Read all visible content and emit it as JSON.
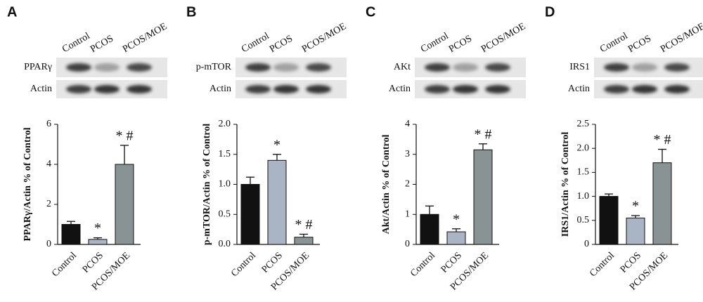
{
  "chart_data": [
    {
      "type": "bar",
      "panel": "A",
      "blot_lanes": [
        "Control",
        "PCOS",
        "PCOS/MOE"
      ],
      "blot_rows": [
        "PPARγ",
        "Actin"
      ],
      "ylabel": "PPARγ/Actin % of Control",
      "categories": [
        "Control",
        "PCOS",
        "PCOS/MOE"
      ],
      "values": [
        1.0,
        0.25,
        4.0
      ],
      "errors": [
        0.15,
        0.08,
        0.95
      ],
      "annotations": [
        null,
        "*",
        "* #"
      ],
      "colors": [
        "#111111",
        "#a9b4c4",
        "#899393"
      ],
      "ylim": [
        0,
        6
      ],
      "yticks": [
        0,
        2,
        4,
        6
      ]
    },
    {
      "type": "bar",
      "panel": "B",
      "blot_lanes": [
        "Control",
        "PCOS",
        "PCOS/MOE"
      ],
      "blot_rows": [
        "p-mTOR",
        "Actin"
      ],
      "ylabel": "p-mTOR/Actin % of Control",
      "categories": [
        "Control",
        "PCOS",
        "PCOS/MOE"
      ],
      "values": [
        1.0,
        1.4,
        0.12
      ],
      "errors": [
        0.12,
        0.1,
        0.05
      ],
      "annotations": [
        null,
        "*",
        "* #"
      ],
      "colors": [
        "#111111",
        "#a9b4c4",
        "#899393"
      ],
      "ylim": [
        0,
        2
      ],
      "yticks": [
        {
          "value": 0,
          "label": "0.0"
        },
        0.5,
        {
          "value": 1,
          "label": "1.0"
        },
        1.5,
        {
          "value": 2,
          "label": "2.0"
        }
      ]
    },
    {
      "type": "bar",
      "panel": "C",
      "blot_lanes": [
        "Control",
        "PCOS",
        "PCOS/MOE"
      ],
      "blot_rows": [
        "AKt",
        "Actin"
      ],
      "ylabel": "Akt/Actin % of Control",
      "categories": [
        "Control",
        "PCOS",
        "PCOS/MOE"
      ],
      "values": [
        1.0,
        0.42,
        3.15
      ],
      "errors": [
        0.28,
        0.1,
        0.2
      ],
      "annotations": [
        null,
        "*",
        "* #"
      ],
      "colors": [
        "#111111",
        "#a9b4c4",
        "#899393"
      ],
      "ylim": [
        0,
        4
      ],
      "yticks": [
        0,
        1,
        2,
        3,
        4
      ]
    },
    {
      "type": "bar",
      "panel": "D",
      "blot_lanes": [
        "Control",
        "PCOS",
        "PCOS/MOE"
      ],
      "blot_rows": [
        "IRS1",
        "Actin"
      ],
      "ylabel": "IRS1/Actin % of Control",
      "categories": [
        "Control",
        "PCOS",
        "PCOS/MOE"
      ],
      "values": [
        1.0,
        0.55,
        1.7
      ],
      "errors": [
        0.05,
        0.05,
        0.28
      ],
      "annotations": [
        null,
        "*",
        "* #"
      ],
      "colors": [
        "#111111",
        "#a9b4c4",
        "#899393"
      ],
      "ylim": [
        0,
        2.5
      ],
      "yticks": [
        0,
        0.5,
        {
          "value": 1,
          "label": "1.0"
        },
        1.5,
        {
          "value": 2,
          "label": "2.0"
        },
        2.5
      ]
    }
  ]
}
